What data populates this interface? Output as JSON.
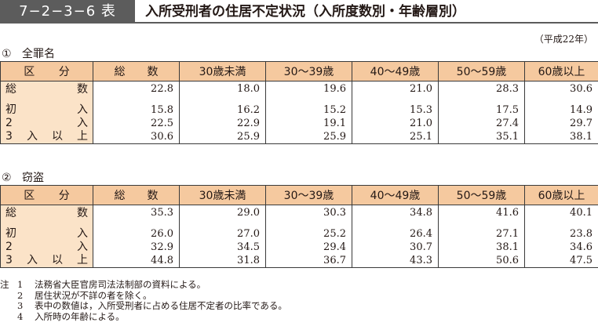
{
  "header": {
    "tag": "7−2−3−6 表",
    "title": "入所受刑者の住居不定状況（入所度数別・年齢層別）"
  },
  "unit_note": "（平成22年）",
  "columns": [
    "総　　数",
    "30歳未満",
    "30～39歳",
    "40～49歳",
    "50～59歳",
    "60歳以上"
  ],
  "kubun_label": [
    "区",
    "分"
  ],
  "sections": [
    {
      "number": "①",
      "name": "全罪名",
      "rows": [
        {
          "label": [
            "総",
            "数"
          ],
          "values": [
            "22.8",
            "18.0",
            "19.6",
            "21.0",
            "28.3",
            "30.6"
          ]
        },
        {
          "label": [
            "初",
            "入"
          ],
          "values": [
            "15.8",
            "16.2",
            "15.2",
            "15.3",
            "17.5",
            "14.9"
          ]
        },
        {
          "label": [
            "2",
            "入"
          ],
          "values": [
            "22.5",
            "22.9",
            "19.1",
            "21.0",
            "27.4",
            "29.7"
          ]
        },
        {
          "label": [
            "3",
            "入",
            "以",
            "上"
          ],
          "values": [
            "30.6",
            "25.9",
            "25.9",
            "25.1",
            "35.1",
            "38.1"
          ]
        }
      ]
    },
    {
      "number": "②",
      "name": "窃盗",
      "rows": [
        {
          "label": [
            "総",
            "数"
          ],
          "values": [
            "35.3",
            "29.0",
            "30.3",
            "34.8",
            "41.6",
            "40.1"
          ]
        },
        {
          "label": [
            "初",
            "入"
          ],
          "values": [
            "26.0",
            "27.0",
            "25.2",
            "26.4",
            "27.1",
            "23.8"
          ]
        },
        {
          "label": [
            "2",
            "入"
          ],
          "values": [
            "32.9",
            "34.5",
            "29.4",
            "30.7",
            "38.1",
            "34.6"
          ]
        },
        {
          "label": [
            "3",
            "入",
            "以",
            "上"
          ],
          "values": [
            "44.8",
            "31.8",
            "36.7",
            "43.3",
            "50.6",
            "47.5"
          ]
        }
      ]
    }
  ],
  "notes": {
    "prefix": "注",
    "items": [
      {
        "num": "1",
        "text": "法務省大臣官房司法法制部の資料による。"
      },
      {
        "num": "2",
        "text": "居住状況が不詳の者を除く。"
      },
      {
        "num": "3",
        "text": "表中の数値は，入所受刑者に占める住居不定者の比率である。"
      },
      {
        "num": "4",
        "text": "入所時の年齢による。"
      }
    ]
  }
}
